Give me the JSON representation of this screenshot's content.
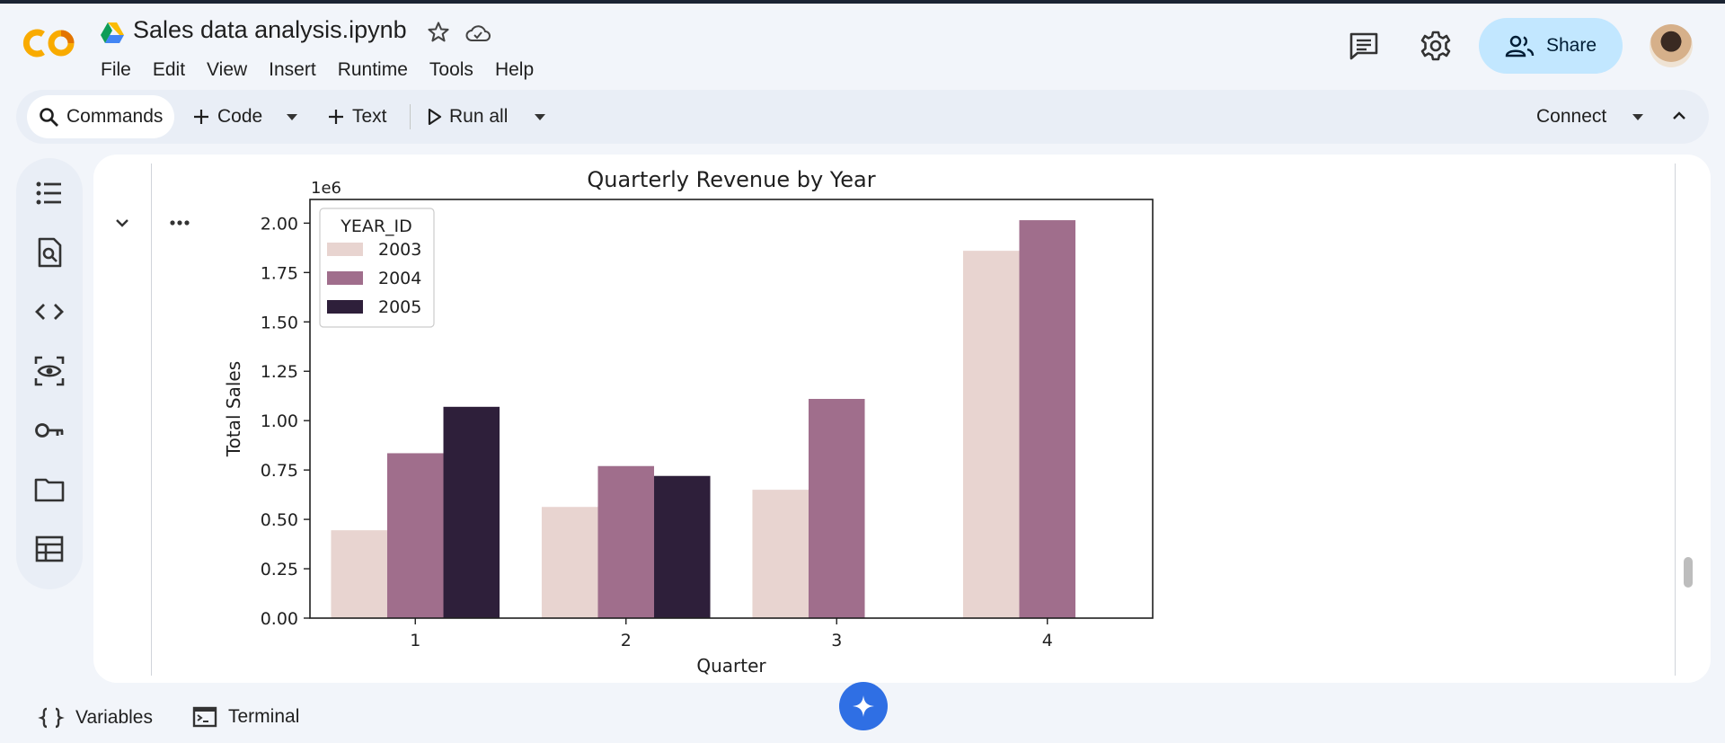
{
  "header": {
    "logo": "colab-logo",
    "file_name": "Sales data analysis.ipynb",
    "menu": [
      "File",
      "Edit",
      "View",
      "Insert",
      "Runtime",
      "Tools",
      "Help"
    ],
    "share_label": "Share",
    "colors": {
      "share_bg": "#c2e7ff",
      "accent": "#2f6fe4",
      "logo_orange": "#f9ab00",
      "logo_dark_orange": "#e37400"
    }
  },
  "toolbar": {
    "commands_label": "Commands",
    "code_label": "Code",
    "text_label": "Text",
    "run_all_label": "Run all",
    "connect_label": "Connect"
  },
  "left_rail": {
    "icons": [
      "table-of-contents-icon",
      "find-replace-icon",
      "code-snippets-icon",
      "variables-inspector-icon",
      "secrets-key-icon",
      "files-folder-icon",
      "data-table-icon"
    ]
  },
  "bottom_bar": {
    "variables_label": "Variables",
    "terminal_label": "Terminal"
  },
  "chart_data": {
    "type": "bar",
    "title": "Quarterly Revenue by Year",
    "xlabel": "Quarter",
    "ylabel": "Total Sales",
    "y_offset_label": "1e6",
    "categories": [
      "1",
      "2",
      "3",
      "4"
    ],
    "ylim": [
      0,
      2.12
    ],
    "yticks": [
      "0.00",
      "0.25",
      "0.50",
      "0.75",
      "1.00",
      "1.25",
      "1.50",
      "1.75",
      "2.00"
    ],
    "legend_title": "YEAR_ID",
    "legend_position": "top-left",
    "grid": false,
    "series": [
      {
        "name": "2003",
        "color": "#e8d4d0",
        "values": [
          0.445,
          0.563,
          0.65,
          1.86
        ]
      },
      {
        "name": "2004",
        "color": "#a06e8c",
        "values": [
          0.835,
          0.77,
          1.11,
          2.015
        ]
      },
      {
        "name": "2005",
        "color": "#2e1f3a",
        "values": [
          1.07,
          0.72,
          null,
          null
        ]
      }
    ]
  }
}
